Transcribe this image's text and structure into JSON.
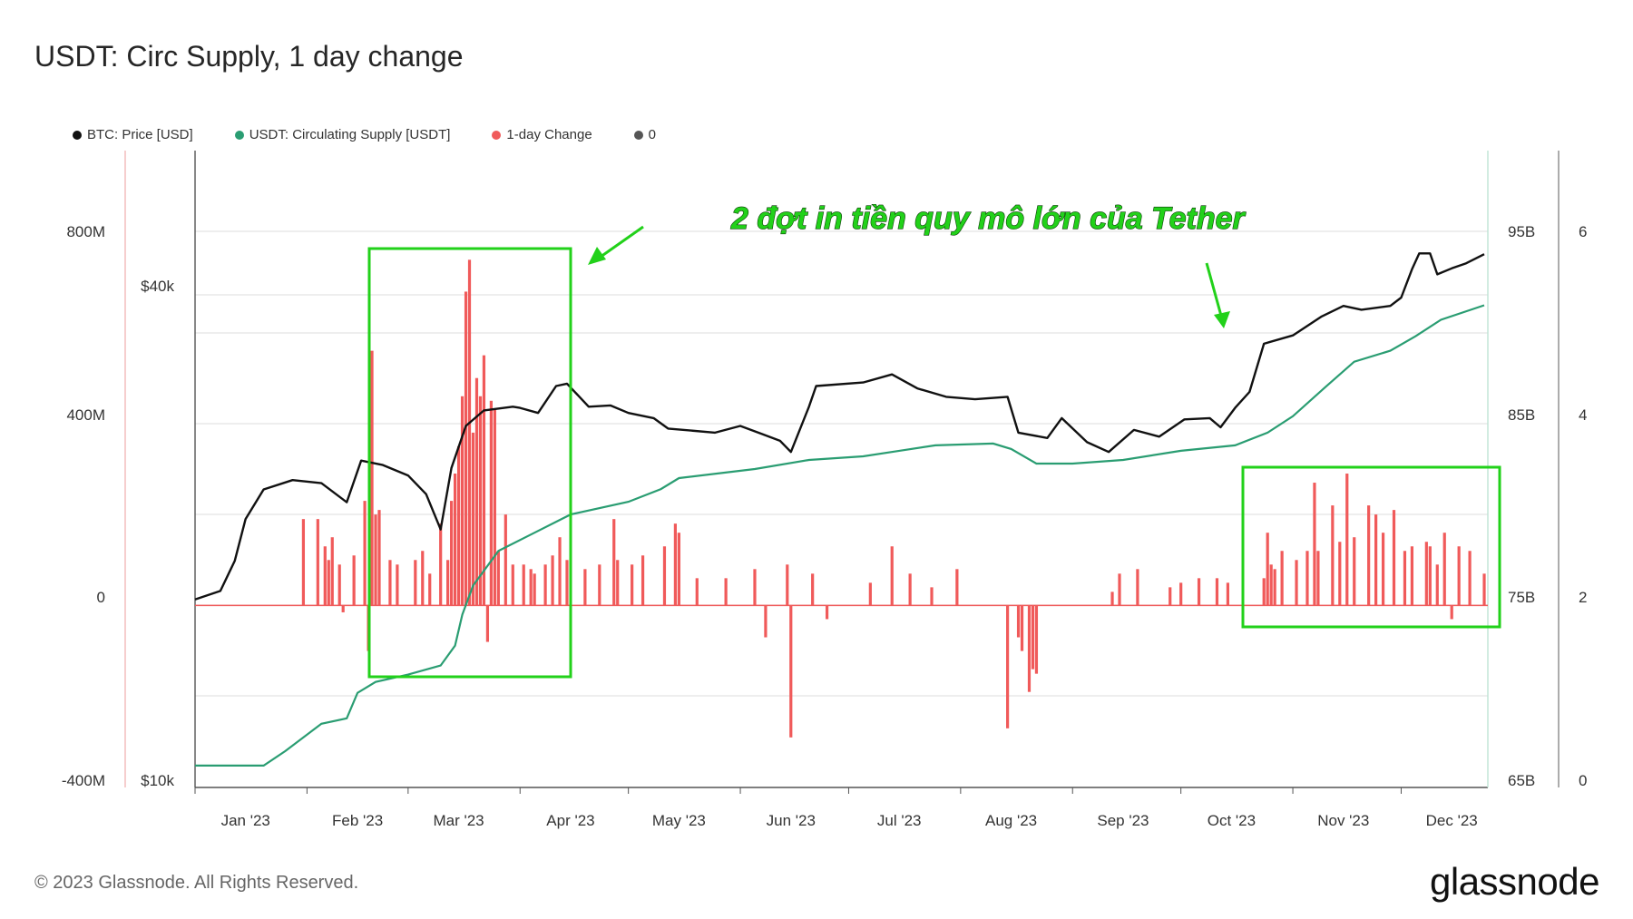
{
  "title": "USDT: Circ Supply, 1 day change",
  "legend": [
    {
      "label": "BTC: Price [USD]",
      "color": "#111111"
    },
    {
      "label": "USDT: Circulating Supply [USDT]",
      "color": "#2a9d72"
    },
    {
      "label": "1-day Change",
      "color": "#f05a5a"
    },
    {
      "label": "0",
      "color": "#555555"
    }
  ],
  "footer": "© 2023 Glassnode. All Rights Reserved.",
  "brand": "glassnode",
  "annotation": "2 đợt in tiền quy mô lớn của Tether",
  "chart_data": {
    "type": "line",
    "x_range": [
      "2023-01-01",
      "2023-12-25"
    ],
    "x_ticks": [
      "Jan '23",
      "Feb '23",
      "Mar '23",
      "Apr '23",
      "May '23",
      "Jun '23",
      "Jul '23",
      "Aug '23",
      "Sep '23",
      "Oct '23",
      "Nov '23",
      "Dec '23"
    ],
    "axes": {
      "change_axis": {
        "ticks": [
          "800M",
          "400M",
          "0",
          "-400M"
        ],
        "range": [
          -400000000,
          1000000000
        ]
      },
      "price_axis": {
        "ticks": [
          "$40k",
          "$10k"
        ],
        "scale": "log"
      },
      "supply_axis": {
        "ticks": [
          "95B",
          "85B",
          "75B",
          "65B"
        ],
        "range": [
          65000000000,
          100000000000
        ]
      },
      "right_axis": {
        "ticks": [
          "6",
          "4",
          "2",
          "0"
        ],
        "range": [
          0,
          7
        ]
      }
    },
    "series": [
      {
        "name": "BTC: Price [USD]",
        "color": "#111111",
        "points": [
          [
            "2023-01-01",
            16600
          ],
          [
            "2023-01-08",
            17000
          ],
          [
            "2023-01-12",
            18500
          ],
          [
            "2023-01-15",
            20800
          ],
          [
            "2023-01-20",
            22600
          ],
          [
            "2023-01-28",
            23200
          ],
          [
            "2023-02-05",
            23000
          ],
          [
            "2023-02-12",
            21800
          ],
          [
            "2023-02-16",
            24500
          ],
          [
            "2023-02-22",
            24200
          ],
          [
            "2023-03-01",
            23500
          ],
          [
            "2023-03-06",
            22300
          ],
          [
            "2023-03-10",
            20200
          ],
          [
            "2023-03-13",
            24000
          ],
          [
            "2023-03-17",
            27000
          ],
          [
            "2023-03-22",
            28200
          ],
          [
            "2023-03-30",
            28500
          ],
          [
            "2023-04-01",
            28400
          ],
          [
            "2023-04-06",
            28000
          ],
          [
            "2023-04-11",
            30200
          ],
          [
            "2023-04-14",
            30400
          ],
          [
            "2023-04-20",
            28500
          ],
          [
            "2023-04-26",
            28600
          ],
          [
            "2023-05-01",
            28000
          ],
          [
            "2023-05-08",
            27600
          ],
          [
            "2023-05-12",
            26800
          ],
          [
            "2023-05-25",
            26500
          ],
          [
            "2023-06-01",
            27000
          ],
          [
            "2023-06-07",
            26400
          ],
          [
            "2023-06-12",
            25900
          ],
          [
            "2023-06-15",
            25100
          ],
          [
            "2023-06-20",
            28500
          ],
          [
            "2023-06-22",
            30200
          ],
          [
            "2023-07-05",
            30500
          ],
          [
            "2023-07-13",
            31200
          ],
          [
            "2023-07-20",
            30000
          ],
          [
            "2023-07-28",
            29300
          ],
          [
            "2023-08-05",
            29100
          ],
          [
            "2023-08-14",
            29300
          ],
          [
            "2023-08-17",
            26500
          ],
          [
            "2023-08-25",
            26100
          ],
          [
            "2023-08-29",
            27600
          ],
          [
            "2023-09-05",
            25800
          ],
          [
            "2023-09-11",
            25100
          ],
          [
            "2023-09-18",
            26700
          ],
          [
            "2023-09-25",
            26200
          ],
          [
            "2023-10-02",
            27500
          ],
          [
            "2023-10-09",
            27600
          ],
          [
            "2023-10-12",
            26900
          ],
          [
            "2023-10-16",
            28400
          ],
          [
            "2023-10-20",
            29700
          ],
          [
            "2023-10-24",
            34000
          ],
          [
            "2023-11-01",
            34800
          ],
          [
            "2023-11-09",
            36700
          ],
          [
            "2023-11-15",
            37800
          ],
          [
            "2023-11-20",
            37400
          ],
          [
            "2023-11-28",
            37800
          ],
          [
            "2023-12-01",
            38700
          ],
          [
            "2023-12-04",
            41900
          ],
          [
            "2023-12-06",
            43800
          ],
          [
            "2023-12-09",
            43800
          ],
          [
            "2023-12-11",
            41300
          ],
          [
            "2023-12-15",
            42000
          ],
          [
            "2023-12-19",
            42600
          ],
          [
            "2023-12-24",
            43700
          ]
        ]
      },
      {
        "name": "USDT: Circulating Supply [USDT]",
        "color": "#2a9d72",
        "points": [
          [
            "2023-01-01",
            66200000000
          ],
          [
            "2023-01-20",
            66200000000
          ],
          [
            "2023-01-26",
            67000000000
          ],
          [
            "2023-02-05",
            68500000000
          ],
          [
            "2023-02-12",
            68800000000
          ],
          [
            "2023-02-15",
            70200000000
          ],
          [
            "2023-02-20",
            70800000000
          ],
          [
            "2023-03-01",
            71200000000
          ],
          [
            "2023-03-10",
            71700000000
          ],
          [
            "2023-03-14",
            72800000000
          ],
          [
            "2023-03-16",
            74500000000
          ],
          [
            "2023-03-19",
            76100000000
          ],
          [
            "2023-03-26",
            78000000000
          ],
          [
            "2023-04-05",
            79000000000
          ],
          [
            "2023-04-15",
            80000000000
          ],
          [
            "2023-05-01",
            80700000000
          ],
          [
            "2023-05-10",
            81400000000
          ],
          [
            "2023-05-15",
            82000000000
          ],
          [
            "2023-06-05",
            82500000000
          ],
          [
            "2023-06-20",
            83000000000
          ],
          [
            "2023-07-05",
            83200000000
          ],
          [
            "2023-07-15",
            83500000000
          ],
          [
            "2023-07-25",
            83800000000
          ],
          [
            "2023-08-10",
            83900000000
          ],
          [
            "2023-08-15",
            83600000000
          ],
          [
            "2023-08-22",
            82800000000
          ],
          [
            "2023-09-01",
            82800000000
          ],
          [
            "2023-09-15",
            83000000000
          ],
          [
            "2023-10-01",
            83500000000
          ],
          [
            "2023-10-16",
            83800000000
          ],
          [
            "2023-10-25",
            84500000000
          ],
          [
            "2023-11-01",
            85400000000
          ],
          [
            "2023-11-10",
            87000000000
          ],
          [
            "2023-11-18",
            88400000000
          ],
          [
            "2023-11-28",
            89000000000
          ],
          [
            "2023-12-05",
            89800000000
          ],
          [
            "2023-12-12",
            90700000000
          ],
          [
            "2023-12-24",
            91500000000
          ]
        ]
      },
      {
        "name": "1-day Change",
        "color": "#f05a5a",
        "type": "bar",
        "points": [
          [
            "2023-01-31",
            190000000
          ],
          [
            "2023-02-04",
            190000000
          ],
          [
            "2023-02-06",
            130000000
          ],
          [
            "2023-02-07",
            100000000
          ],
          [
            "2023-02-08",
            150000000
          ],
          [
            "2023-02-10",
            90000000
          ],
          [
            "2023-02-11",
            -15000000
          ],
          [
            "2023-02-14",
            110000000
          ],
          [
            "2023-02-17",
            230000000
          ],
          [
            "2023-02-18",
            -100000000
          ],
          [
            "2023-02-19",
            560000000
          ],
          [
            "2023-02-20",
            200000000
          ],
          [
            "2023-02-21",
            210000000
          ],
          [
            "2023-02-24",
            100000000
          ],
          [
            "2023-02-26",
            90000000
          ],
          [
            "2023-03-03",
            100000000
          ],
          [
            "2023-03-05",
            120000000
          ],
          [
            "2023-03-07",
            70000000
          ],
          [
            "2023-03-10",
            180000000
          ],
          [
            "2023-03-12",
            100000000
          ],
          [
            "2023-03-13",
            230000000
          ],
          [
            "2023-03-14",
            290000000
          ],
          [
            "2023-03-15",
            350000000
          ],
          [
            "2023-03-16",
            460000000
          ],
          [
            "2023-03-17",
            690000000
          ],
          [
            "2023-03-18",
            760000000
          ],
          [
            "2023-03-19",
            380000000
          ],
          [
            "2023-03-20",
            500000000
          ],
          [
            "2023-03-21",
            460000000
          ],
          [
            "2023-03-22",
            550000000
          ],
          [
            "2023-03-23",
            -80000000
          ],
          [
            "2023-03-24",
            450000000
          ],
          [
            "2023-03-25",
            430000000
          ],
          [
            "2023-03-26",
            120000000
          ],
          [
            "2023-03-28",
            200000000
          ],
          [
            "2023-03-30",
            90000000
          ],
          [
            "2023-04-02",
            90000000
          ],
          [
            "2023-04-04",
            80000000
          ],
          [
            "2023-04-05",
            70000000
          ],
          [
            "2023-04-08",
            90000000
          ],
          [
            "2023-04-10",
            110000000
          ],
          [
            "2023-04-12",
            150000000
          ],
          [
            "2023-04-14",
            100000000
          ],
          [
            "2023-04-19",
            80000000
          ],
          [
            "2023-04-23",
            90000000
          ],
          [
            "2023-04-27",
            190000000
          ],
          [
            "2023-04-28",
            100000000
          ],
          [
            "2023-05-02",
            90000000
          ],
          [
            "2023-05-05",
            110000000
          ],
          [
            "2023-05-11",
            130000000
          ],
          [
            "2023-05-14",
            180000000
          ],
          [
            "2023-05-15",
            160000000
          ],
          [
            "2023-05-20",
            60000000
          ],
          [
            "2023-05-28",
            60000000
          ],
          [
            "2023-06-05",
            80000000
          ],
          [
            "2023-06-08",
            -70000000
          ],
          [
            "2023-06-14",
            90000000
          ],
          [
            "2023-06-15",
            -290000000
          ],
          [
            "2023-06-21",
            70000000
          ],
          [
            "2023-06-25",
            -30000000
          ],
          [
            "2023-07-07",
            50000000
          ],
          [
            "2023-07-13",
            130000000
          ],
          [
            "2023-07-18",
            70000000
          ],
          [
            "2023-07-24",
            40000000
          ],
          [
            "2023-07-31",
            80000000
          ],
          [
            "2023-08-14",
            -270000000
          ],
          [
            "2023-08-17",
            -70000000
          ],
          [
            "2023-08-18",
            -100000000
          ],
          [
            "2023-08-20",
            -190000000
          ],
          [
            "2023-08-21",
            -140000000
          ],
          [
            "2023-08-22",
            -150000000
          ],
          [
            "2023-09-12",
            30000000
          ],
          [
            "2023-09-14",
            70000000
          ],
          [
            "2023-09-19",
            80000000
          ],
          [
            "2023-09-28",
            40000000
          ],
          [
            "2023-10-01",
            50000000
          ],
          [
            "2023-10-06",
            60000000
          ],
          [
            "2023-10-11",
            60000000
          ],
          [
            "2023-10-14",
            50000000
          ],
          [
            "2023-10-24",
            60000000
          ],
          [
            "2023-10-25",
            160000000
          ],
          [
            "2023-10-26",
            90000000
          ],
          [
            "2023-10-27",
            80000000
          ],
          [
            "2023-10-29",
            120000000
          ],
          [
            "2023-11-02",
            100000000
          ],
          [
            "2023-11-05",
            120000000
          ],
          [
            "2023-11-07",
            270000000
          ],
          [
            "2023-11-08",
            120000000
          ],
          [
            "2023-11-12",
            220000000
          ],
          [
            "2023-11-14",
            140000000
          ],
          [
            "2023-11-16",
            290000000
          ],
          [
            "2023-11-18",
            150000000
          ],
          [
            "2023-11-22",
            220000000
          ],
          [
            "2023-11-24",
            200000000
          ],
          [
            "2023-11-26",
            160000000
          ],
          [
            "2023-11-29",
            210000000
          ],
          [
            "2023-12-02",
            120000000
          ],
          [
            "2023-12-04",
            130000000
          ],
          [
            "2023-12-08",
            140000000
          ],
          [
            "2023-12-09",
            130000000
          ],
          [
            "2023-12-11",
            90000000
          ],
          [
            "2023-12-13",
            160000000
          ],
          [
            "2023-12-15",
            -30000000
          ],
          [
            "2023-12-17",
            130000000
          ],
          [
            "2023-12-20",
            120000000
          ],
          [
            "2023-12-24",
            70000000
          ]
        ]
      }
    ],
    "legend_position": "top-left",
    "grid": true
  }
}
